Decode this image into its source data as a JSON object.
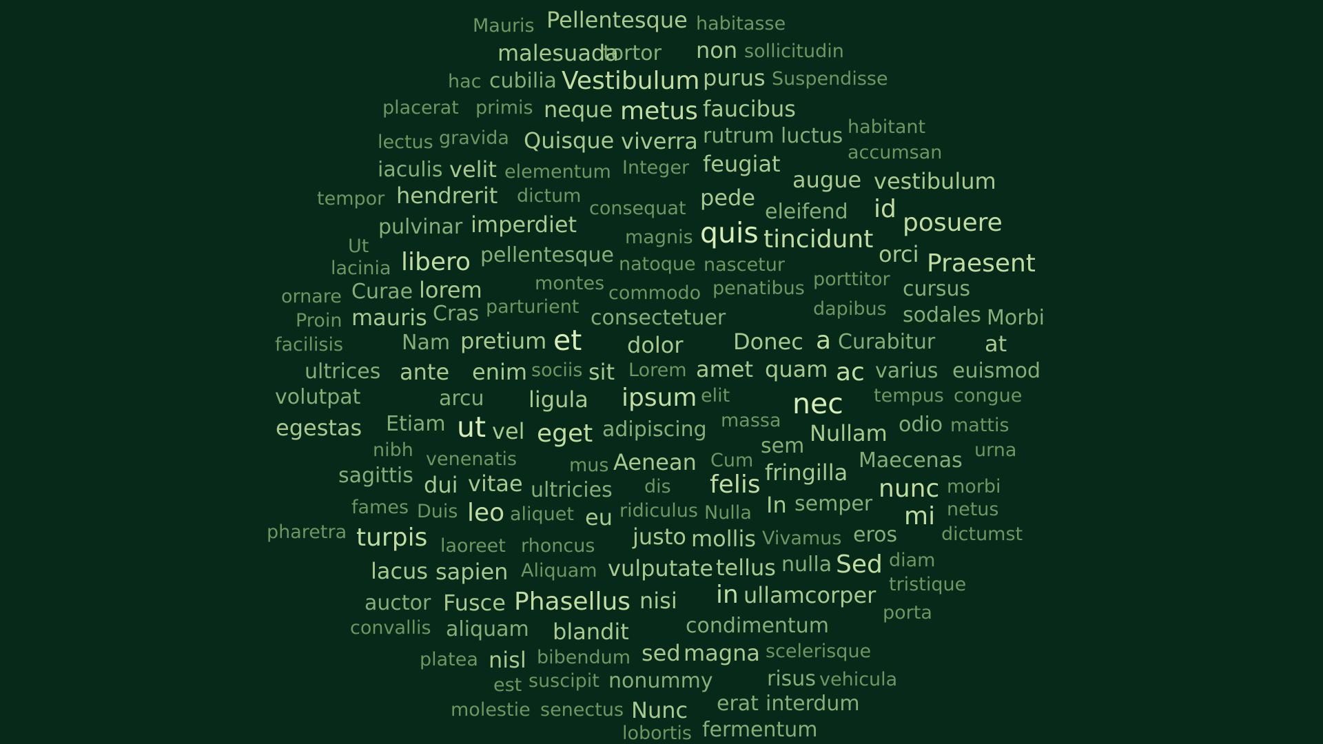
{
  "background_color": "#06291a",
  "palette": {
    "dim": "#6f9660",
    "low": "#89ad77",
    "mid": "#a9c98f",
    "high": "#c2dda2",
    "top": "#d7edb8"
  },
  "words": [
    {
      "text": "Mauris",
      "weight": 1
    },
    {
      "text": "Pellentesque",
      "weight": 3
    },
    {
      "text": "habitasse",
      "weight": 1
    },
    {
      "text": "malesuada",
      "weight": 3
    },
    {
      "text": "tortor",
      "weight": 2
    },
    {
      "text": "non",
      "weight": 3
    },
    {
      "text": "sollicitudin",
      "weight": 1
    },
    {
      "text": "hac",
      "weight": 1
    },
    {
      "text": "cubilia",
      "weight": 2
    },
    {
      "text": "Vestibulum",
      "weight": 4
    },
    {
      "text": "purus",
      "weight": 3
    },
    {
      "text": "Suspendisse",
      "weight": 1
    },
    {
      "text": "placerat",
      "weight": 1
    },
    {
      "text": "primis",
      "weight": 1
    },
    {
      "text": "neque",
      "weight": 3
    },
    {
      "text": "metus",
      "weight": 4
    },
    {
      "text": "faucibus",
      "weight": 3
    },
    {
      "text": "lectus",
      "weight": 1
    },
    {
      "text": "gravida",
      "weight": 1
    },
    {
      "text": "Quisque",
      "weight": 3
    },
    {
      "text": "viverra",
      "weight": 3
    },
    {
      "text": "rutrum",
      "weight": 2
    },
    {
      "text": "luctus",
      "weight": 2
    },
    {
      "text": "habitant",
      "weight": 1
    },
    {
      "text": "accumsan",
      "weight": 1
    },
    {
      "text": "iaculis",
      "weight": 2
    },
    {
      "text": "velit",
      "weight": 3
    },
    {
      "text": "elementum",
      "weight": 1
    },
    {
      "text": "Integer",
      "weight": 1
    },
    {
      "text": "feugiat",
      "weight": 3
    },
    {
      "text": "augue",
      "weight": 3
    },
    {
      "text": "vestibulum",
      "weight": 3
    },
    {
      "text": "tempor",
      "weight": 1
    },
    {
      "text": "hendrerit",
      "weight": 3
    },
    {
      "text": "dictum",
      "weight": 1
    },
    {
      "text": "consequat",
      "weight": 1
    },
    {
      "text": "pede",
      "weight": 3
    },
    {
      "text": "eleifend",
      "weight": 2
    },
    {
      "text": "id",
      "weight": 4
    },
    {
      "text": "posuere",
      "weight": 4
    },
    {
      "text": "Ut",
      "weight": 1
    },
    {
      "text": "pulvinar",
      "weight": 2
    },
    {
      "text": "imperdiet",
      "weight": 3
    },
    {
      "text": "magnis",
      "weight": 1
    },
    {
      "text": "quis",
      "weight": 5
    },
    {
      "text": "tincidunt",
      "weight": 4
    },
    {
      "text": "orci",
      "weight": 3
    },
    {
      "text": "lacinia",
      "weight": 1
    },
    {
      "text": "libero",
      "weight": 4
    },
    {
      "text": "pellentesque",
      "weight": 2
    },
    {
      "text": "natoque",
      "weight": 1
    },
    {
      "text": "nascetur",
      "weight": 1
    },
    {
      "text": "Praesent",
      "weight": 4
    },
    {
      "text": "montes",
      "weight": 1
    },
    {
      "text": "porttitor",
      "weight": 1
    },
    {
      "text": "ornare",
      "weight": 1
    },
    {
      "text": "Curae",
      "weight": 2
    },
    {
      "text": "lorem",
      "weight": 3
    },
    {
      "text": "commodo",
      "weight": 1
    },
    {
      "text": "penatibus",
      "weight": 1
    },
    {
      "text": "cursus",
      "weight": 2
    },
    {
      "text": "parturient",
      "weight": 1
    },
    {
      "text": "Proin",
      "weight": 1
    },
    {
      "text": "mauris",
      "weight": 3
    },
    {
      "text": "Cras",
      "weight": 2
    },
    {
      "text": "consectetuer",
      "weight": 2
    },
    {
      "text": "dapibus",
      "weight": 1
    },
    {
      "text": "sodales",
      "weight": 2
    },
    {
      "text": "Morbi",
      "weight": 2
    },
    {
      "text": "facilisis",
      "weight": 1
    },
    {
      "text": "Nam",
      "weight": 2
    },
    {
      "text": "pretium",
      "weight": 3
    },
    {
      "text": "et",
      "weight": 5
    },
    {
      "text": "dolor",
      "weight": 3
    },
    {
      "text": "Donec",
      "weight": 3
    },
    {
      "text": "a",
      "weight": 4
    },
    {
      "text": "Curabitur",
      "weight": 2
    },
    {
      "text": "at",
      "weight": 3
    },
    {
      "text": "ultrices",
      "weight": 2
    },
    {
      "text": "ante",
      "weight": 3
    },
    {
      "text": "enim",
      "weight": 3
    },
    {
      "text": "sociis",
      "weight": 1
    },
    {
      "text": "sit",
      "weight": 3
    },
    {
      "text": "Lorem",
      "weight": 1
    },
    {
      "text": "amet",
      "weight": 3
    },
    {
      "text": "quam",
      "weight": 3
    },
    {
      "text": "ac",
      "weight": 4
    },
    {
      "text": "varius",
      "weight": 2
    },
    {
      "text": "euismod",
      "weight": 2
    },
    {
      "text": "volutpat",
      "weight": 2
    },
    {
      "text": "arcu",
      "weight": 2
    },
    {
      "text": "ligula",
      "weight": 3
    },
    {
      "text": "ipsum",
      "weight": 4
    },
    {
      "text": "elit",
      "weight": 1
    },
    {
      "text": "nec",
      "weight": 5
    },
    {
      "text": "tempus",
      "weight": 1
    },
    {
      "text": "congue",
      "weight": 1
    },
    {
      "text": "egestas",
      "weight": 3
    },
    {
      "text": "Etiam",
      "weight": 2
    },
    {
      "text": "ut",
      "weight": 5
    },
    {
      "text": "vel",
      "weight": 3
    },
    {
      "text": "eget",
      "weight": 4
    },
    {
      "text": "adipiscing",
      "weight": 2
    },
    {
      "text": "massa",
      "weight": 1
    },
    {
      "text": "Nullam",
      "weight": 3
    },
    {
      "text": "odio",
      "weight": 2
    },
    {
      "text": "mattis",
      "weight": 1
    },
    {
      "text": "nibh",
      "weight": 1
    },
    {
      "text": "sem",
      "weight": 2
    },
    {
      "text": "venenatis",
      "weight": 1
    },
    {
      "text": "mus",
      "weight": 1
    },
    {
      "text": "Aenean",
      "weight": 3
    },
    {
      "text": "Cum",
      "weight": 1
    },
    {
      "text": "Maecenas",
      "weight": 2
    },
    {
      "text": "urna",
      "weight": 1
    },
    {
      "text": "sagittis",
      "weight": 2
    },
    {
      "text": "dui",
      "weight": 3
    },
    {
      "text": "vitae",
      "weight": 3
    },
    {
      "text": "ultricies",
      "weight": 2
    },
    {
      "text": "dis",
      "weight": 1
    },
    {
      "text": "felis",
      "weight": 4
    },
    {
      "text": "fringilla",
      "weight": 3
    },
    {
      "text": "nunc",
      "weight": 4
    },
    {
      "text": "morbi",
      "weight": 1
    },
    {
      "text": "fames",
      "weight": 1
    },
    {
      "text": "Duis",
      "weight": 1
    },
    {
      "text": "leo",
      "weight": 4
    },
    {
      "text": "aliquet",
      "weight": 1
    },
    {
      "text": "eu",
      "weight": 3
    },
    {
      "text": "ridiculus",
      "weight": 1
    },
    {
      "text": "Nulla",
      "weight": 1
    },
    {
      "text": "In",
      "weight": 3
    },
    {
      "text": "semper",
      "weight": 2
    },
    {
      "text": "netus",
      "weight": 1
    },
    {
      "text": "mi",
      "weight": 4
    },
    {
      "text": "pharetra",
      "weight": 1
    },
    {
      "text": "turpis",
      "weight": 4
    },
    {
      "text": "laoreet",
      "weight": 1
    },
    {
      "text": "rhoncus",
      "weight": 1
    },
    {
      "text": "justo",
      "weight": 3
    },
    {
      "text": "mollis",
      "weight": 3
    },
    {
      "text": "Vivamus",
      "weight": 1
    },
    {
      "text": "eros",
      "weight": 2
    },
    {
      "text": "dictumst",
      "weight": 1
    },
    {
      "text": "lacus",
      "weight": 3
    },
    {
      "text": "sapien",
      "weight": 3
    },
    {
      "text": "Aliquam",
      "weight": 1
    },
    {
      "text": "vulputate",
      "weight": 3
    },
    {
      "text": "tellus",
      "weight": 3
    },
    {
      "text": "nulla",
      "weight": 2
    },
    {
      "text": "Sed",
      "weight": 4
    },
    {
      "text": "diam",
      "weight": 1
    },
    {
      "text": "tristique",
      "weight": 1
    },
    {
      "text": "auctor",
      "weight": 2
    },
    {
      "text": "Fusce",
      "weight": 3
    },
    {
      "text": "Phasellus",
      "weight": 4
    },
    {
      "text": "nisi",
      "weight": 3
    },
    {
      "text": "in",
      "weight": 4
    },
    {
      "text": "ullamcorper",
      "weight": 3
    },
    {
      "text": "porta",
      "weight": 1
    },
    {
      "text": "convallis",
      "weight": 1
    },
    {
      "text": "aliquam",
      "weight": 2
    },
    {
      "text": "blandit",
      "weight": 3
    },
    {
      "text": "condimentum",
      "weight": 2
    },
    {
      "text": "platea",
      "weight": 1
    },
    {
      "text": "nisl",
      "weight": 3
    },
    {
      "text": "bibendum",
      "weight": 1
    },
    {
      "text": "sed",
      "weight": 3
    },
    {
      "text": "magna",
      "weight": 3
    },
    {
      "text": "scelerisque",
      "weight": 1
    },
    {
      "text": "est",
      "weight": 1
    },
    {
      "text": "suscipit",
      "weight": 1
    },
    {
      "text": "nonummy",
      "weight": 2
    },
    {
      "text": "risus",
      "weight": 2
    },
    {
      "text": "vehicula",
      "weight": 1
    },
    {
      "text": "molestie",
      "weight": 1
    },
    {
      "text": "senectus",
      "weight": 1
    },
    {
      "text": "Nunc",
      "weight": 3
    },
    {
      "text": "erat",
      "weight": 2
    },
    {
      "text": "interdum",
      "weight": 2
    },
    {
      "text": "lobortis",
      "weight": 1
    },
    {
      "text": "fermentum",
      "weight": 2
    }
  ]
}
